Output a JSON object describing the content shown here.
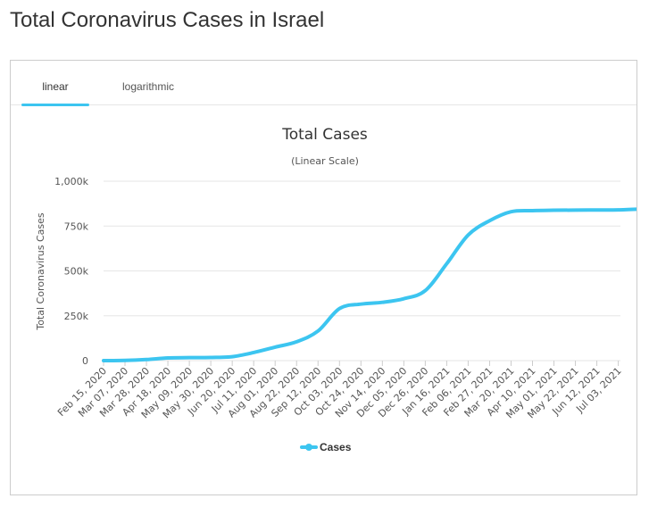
{
  "page": {
    "title": "Total Coronavirus Cases in Israel"
  },
  "tabs": {
    "linear": "linear",
    "logarithmic": "logarithmic"
  },
  "colors": {
    "accent": "#3cc5f0",
    "grid": "#e6e6e6",
    "text": "#333333"
  },
  "chart_data": {
    "type": "line",
    "title": "Total Cases",
    "subtitle": "(Linear Scale)",
    "xlabel": "",
    "ylabel": "Total Coronavirus Cases",
    "ylim": [
      0,
      1000000
    ],
    "y_ticks": [
      0,
      250000,
      500000,
      750000,
      1000000
    ],
    "y_tick_labels": [
      "0",
      "250k",
      "500k",
      "750k",
      "1,000k"
    ],
    "x_tick_labels": [
      "Feb 15, 2020",
      "Mar 07, 2020",
      "Mar 28, 2020",
      "Apr 18, 2020",
      "May 09, 2020",
      "May 30, 2020",
      "Jun 20, 2020",
      "Jul 11, 2020",
      "Aug 01, 2020",
      "Aug 22, 2020",
      "Sep 12, 2020",
      "Oct 03, 2020",
      "Oct 24, 2020",
      "Nov 14, 2020",
      "Dec 05, 2020",
      "Dec 26, 2020",
      "Jan 16, 2021",
      "Feb 06, 2021",
      "Feb 27, 2021",
      "Mar 20, 2021",
      "Apr 10, 2021",
      "May 01, 2021",
      "May 22, 2021",
      "Jun 12, 2021",
      "Jul 03, 2021"
    ],
    "legend": "bottom-center",
    "grid": true,
    "series": [
      {
        "name": "Cases",
        "color": "#3cc5f0",
        "x": [
          0,
          1,
          2,
          3,
          4,
          5,
          6,
          7,
          8,
          9,
          10,
          11,
          12,
          13,
          14,
          15,
          16,
          17,
          18,
          19,
          20,
          21,
          22,
          23,
          24,
          25.1
        ],
        "values": [
          0,
          1000,
          6000,
          15000,
          16500,
          17500,
          22000,
          45000,
          75000,
          105000,
          165000,
          290000,
          315000,
          325000,
          345000,
          390000,
          540000,
          700000,
          780000,
          830000,
          836000,
          838000,
          839000,
          839500,
          840000,
          845000
        ]
      }
    ]
  }
}
